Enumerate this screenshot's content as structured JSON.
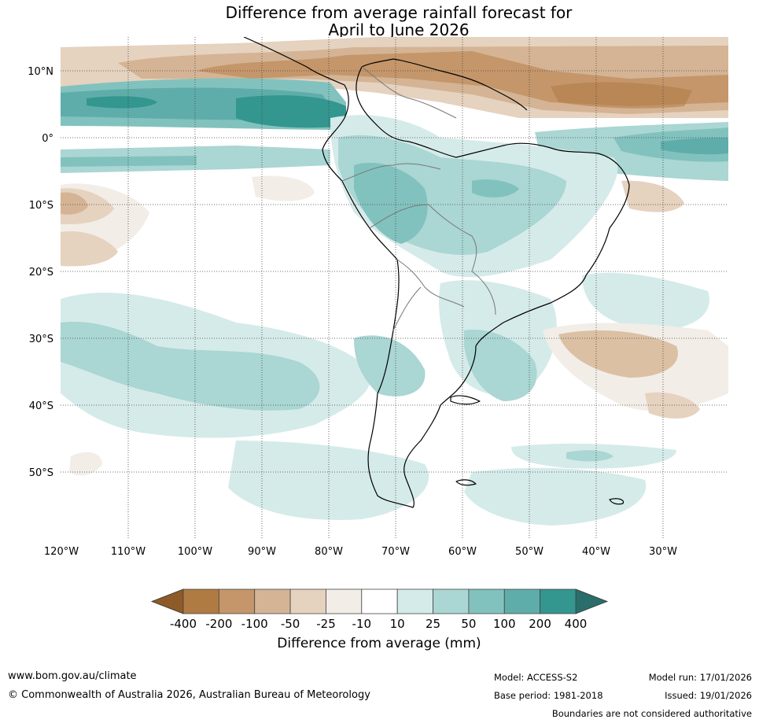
{
  "title": {
    "line1": "Difference from average rainfall forecast for",
    "line2": "April to June 2026"
  },
  "map": {
    "region": "South America",
    "lon_labels": [
      "120°W",
      "110°W",
      "100°W",
      "90°W",
      "80°W",
      "70°W",
      "60°W",
      "50°W",
      "40°W",
      "30°W"
    ],
    "lat_labels": [
      "10°N",
      "0°",
      "10°S",
      "20°S",
      "30°S",
      "40°S",
      "50°S"
    ],
    "lon_values": [
      -120,
      -110,
      -100,
      -90,
      -80,
      -70,
      -60,
      -50,
      -40,
      -30
    ],
    "lat_values": [
      10,
      0,
      -10,
      -20,
      -30,
      -40,
      -50
    ]
  },
  "colorbar": {
    "title": "Difference from average (mm)",
    "tick_labels": [
      "-400",
      "-200",
      "-100",
      "-50",
      "-25",
      "-10",
      "10",
      "25",
      "50",
      "100",
      "200",
      "400"
    ],
    "colors": [
      "#8e5a28",
      "#b07a43",
      "#c4966a",
      "#d4b494",
      "#e5d2bf",
      "#f2ede7",
      "#ffffff",
      "#d5ebe9",
      "#aad6d3",
      "#82c2be",
      "#5fadaa",
      "#33968f",
      "#2a6e6b"
    ]
  },
  "footer": {
    "url": "www.bom.gov.au/climate",
    "copyright": "© Commonwealth of Australia 2026, Australian Bureau of Meteorology",
    "model": "Model: ACCESS-S2",
    "base_period": "Base period: 1981-2018",
    "model_run": "Model run: 17/01/2026",
    "issued": "Issued: 19/01/2026",
    "disclaimer": "Boundaries are not considered authoritative"
  }
}
